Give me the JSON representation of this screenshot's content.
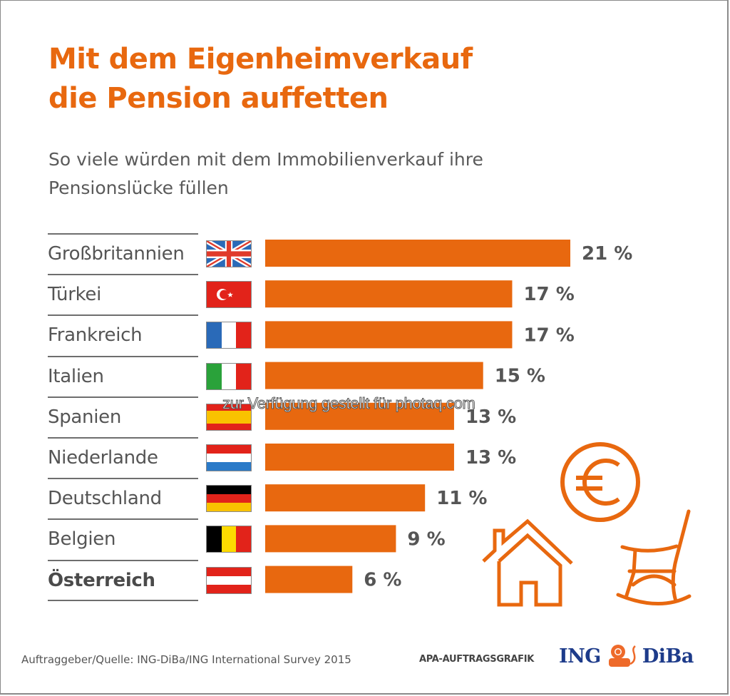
{
  "title": {
    "line1": "Mit dem Eigenheimverkauf",
    "line2": "die Pension auffetten"
  },
  "subtitle": {
    "line1": "So viele würden mit dem Immobilienverkauf ihre",
    "line2": "Pensionslücke füllen"
  },
  "colors": {
    "accent": "#e8680f",
    "text": "#555555",
    "logo_blue": "#1d3b8a"
  },
  "chart_data": {
    "type": "bar",
    "orientation": "horizontal",
    "title": "Mit dem Eigenheimverkauf die Pension auffetten",
    "subtitle": "So viele würden mit dem Immobilienverkauf ihre Pensionslücke füllen",
    "xlabel": "",
    "ylabel": "",
    "unit": "%",
    "grid": false,
    "categories": [
      "Großbritannien",
      "Türkei",
      "Frankreich",
      "Italien",
      "Spanien",
      "Niederlande",
      "Deutschland",
      "Belgien",
      "Österreich"
    ],
    "values": [
      21,
      17,
      17,
      15,
      13,
      13,
      11,
      9,
      6
    ],
    "labels": [
      "21 %",
      "17 %",
      "17 %",
      "15 %",
      "13 %",
      "13 %",
      "11 %",
      "9 %",
      "6 %"
    ],
    "highlight": "Österreich",
    "xlim": [
      0,
      21
    ]
  },
  "rows": [
    {
      "label": "Großbritannien",
      "flag": "uk-flag",
      "bold": false
    },
    {
      "label": "Türkei",
      "flag": "turkey-flag",
      "bold": false
    },
    {
      "label": "Frankreich",
      "flag": "france-flag",
      "bold": false
    },
    {
      "label": "Italien",
      "flag": "italy-flag",
      "bold": false
    },
    {
      "label": "Spanien",
      "flag": "spain-flag",
      "bold": false
    },
    {
      "label": "Niederlande",
      "flag": "netherlands-flag",
      "bold": false
    },
    {
      "label": "Deutschland",
      "flag": "germany-flag",
      "bold": false
    },
    {
      "label": "Belgien",
      "flag": "belgium-flag",
      "bold": false
    },
    {
      "label": "Österreich",
      "flag": "austria-flag",
      "bold": true
    }
  ],
  "icons": [
    "euro-coin-icon",
    "house-icon",
    "rocking-chair-icon"
  ],
  "footer": {
    "source": "Auftraggeber/Quelle: ING-DiBa/ING International Survey 2015",
    "apa": "APA-AUFTRAGSGRAFIK",
    "logo_left": "ING",
    "logo_right": "DiBa"
  },
  "watermark": "zur Verfügung gestellt für photaq.com"
}
